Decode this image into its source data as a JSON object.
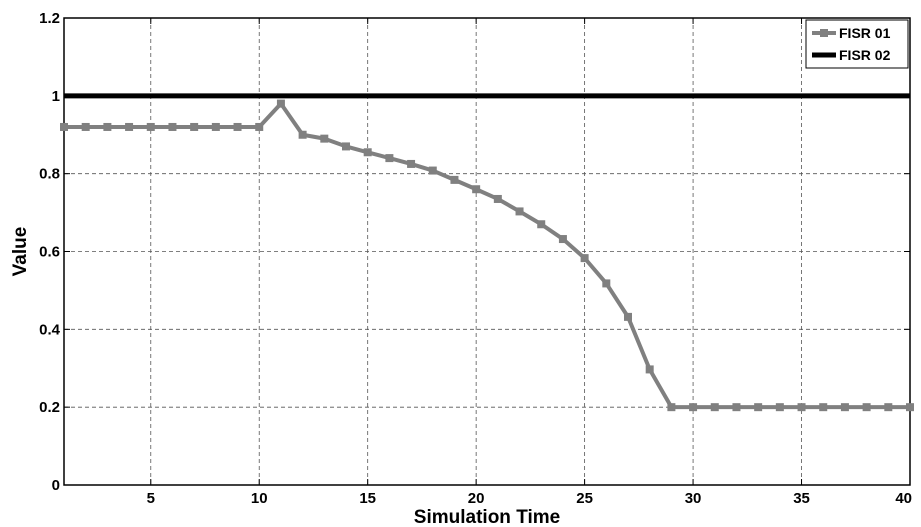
{
  "chart_data": {
    "type": "line",
    "title": "",
    "xlabel": "Simulation Time",
    "ylabel": "Value",
    "xlim": [
      1,
      40
    ],
    "ylim": [
      0,
      1.2
    ],
    "xticks": [
      5,
      10,
      15,
      20,
      25,
      30,
      35,
      40
    ],
    "xtick_labels": [
      "5",
      "10",
      "15",
      "20",
      "25",
      "30",
      "35",
      "40"
    ],
    "yticks": [
      0,
      0.2,
      0.4,
      0.6,
      0.8,
      1,
      1.2
    ],
    "ytick_labels": [
      "0",
      "0.2",
      "0.4",
      "0.6",
      "0.8",
      "1",
      "1.2"
    ],
    "grid": true,
    "legend_position": "top-right",
    "series": [
      {
        "name": "FISR 01",
        "color": "#808080",
        "marker": "square",
        "x": [
          1,
          2,
          3,
          4,
          5,
          6,
          7,
          8,
          9,
          10,
          11,
          12,
          13,
          14,
          15,
          16,
          17,
          18,
          19,
          20,
          21,
          22,
          23,
          24,
          25,
          26,
          27,
          28,
          29,
          30,
          31,
          32,
          33,
          34,
          35,
          36,
          37,
          38,
          39,
          40
        ],
        "y": [
          0.92,
          0.92,
          0.92,
          0.92,
          0.92,
          0.92,
          0.92,
          0.92,
          0.92,
          0.92,
          0.98,
          0.9,
          0.89,
          0.87,
          0.855,
          0.84,
          0.825,
          0.808,
          0.784,
          0.76,
          0.735,
          0.703,
          0.67,
          0.632,
          0.583,
          0.518,
          0.432,
          0.297,
          0.2,
          0.2,
          0.2,
          0.2,
          0.2,
          0.2,
          0.2,
          0.2,
          0.2,
          0.2,
          0.2,
          0.2
        ]
      },
      {
        "name": "FISR 02",
        "color": "#000000",
        "marker": "none",
        "x": [
          1,
          40
        ],
        "y": [
          1,
          1
        ]
      }
    ]
  }
}
